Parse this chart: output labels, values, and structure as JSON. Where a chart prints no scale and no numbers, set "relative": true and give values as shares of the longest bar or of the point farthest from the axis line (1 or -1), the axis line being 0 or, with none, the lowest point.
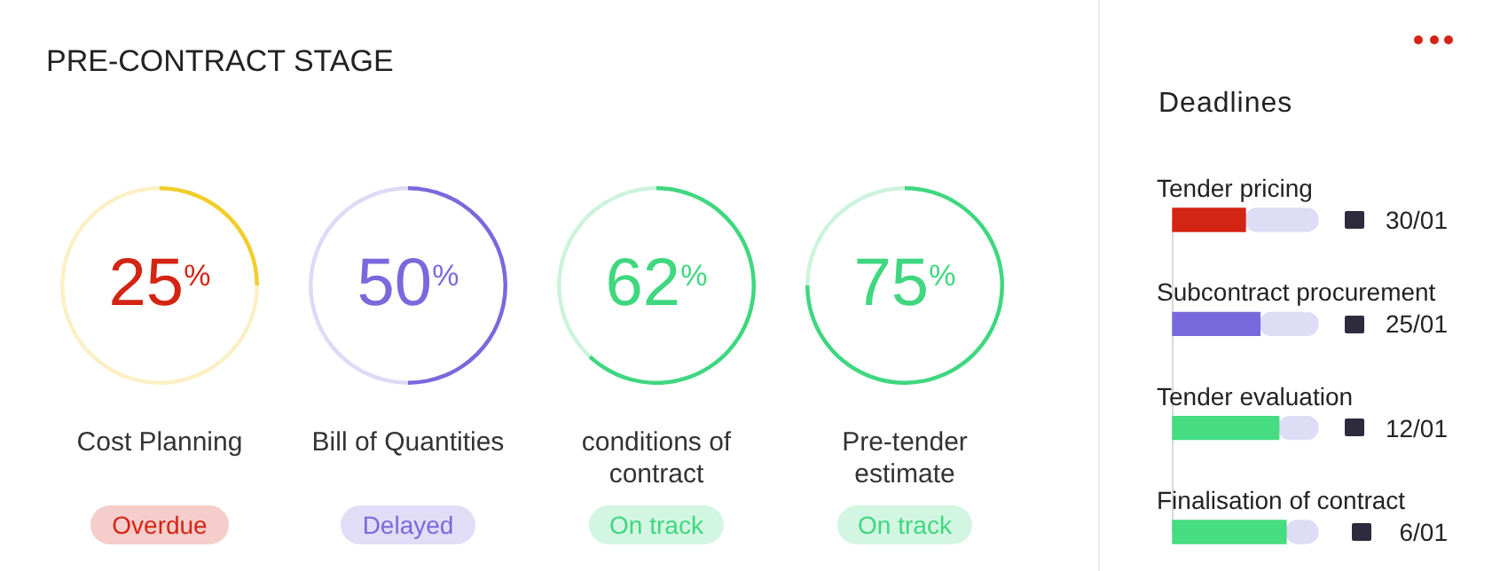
{
  "chart_data": [
    {
      "type": "other",
      "title": "PRE-CONTRACT STAGE"
    },
    {
      "type": "donut",
      "title": "Cost Planning",
      "categories": [
        null,
        null
      ],
      "values": [
        25,
        75
      ],
      "colors": [
        "#f2cd2c",
        "#fbf0c6"
      ],
      "value_labels": [
        "25$^{%}$",
        null
      ],
      "annotations": [
        "Overdue"
      ],
      "legend": false
    },
    {
      "type": "donut",
      "title": "Bill of Quantities",
      "categories": [
        null,
        null
      ],
      "values": [
        50,
        50
      ],
      "colors": [
        "#7a69dc",
        "#dedaf6"
      ],
      "value_labels": [
        "50$^{%}$",
        null
      ],
      "annotations": [
        "Delayed"
      ],
      "legend": false
    },
    {
      "type": "donut",
      "title": "conditions of contract",
      "categories": [
        null,
        null
      ],
      "values": [
        62,
        38
      ],
      "colors": [
        "#3fd77f",
        "#cdf3dc"
      ],
      "value_labels": [
        "62$^{%}$",
        null
      ],
      "annotations": [
        "On track"
      ],
      "legend": false
    },
    {
      "type": "donut",
      "title": "Pre-tender estimate",
      "categories": [
        null,
        null
      ],
      "values": [
        75,
        25
      ],
      "colors": [
        "#3fd77f",
        "#cdf3dc"
      ],
      "value_labels": [
        "75$^{%}$",
        null
      ],
      "annotations": [
        "On track"
      ],
      "legend": false
    },
    {
      "type": "bar",
      "title": "Deadlines",
      "orientation": "horizontal",
      "stacked": true,
      "relative": true,
      "legend": false,
      "categories": [
        "Tender pricing",
        "Subcontract procurement",
        "Tender evaluation",
        "Finalisation of contract"
      ],
      "series": [
        {
          "colors": [
            "#d42414",
            "#7a69dc",
            "#45dc82",
            "#45dc82"
          ],
          "values": [
            0.5,
            0.6,
            0.73,
            0.78
          ]
        },
        {
          "color": "#dfdcf6",
          "values": [
            0.5,
            0.4,
            0.27,
            0.22
          ]
        }
      ],
      "annotations": [
        "30/01",
        "25/01",
        "12/01",
        "6/01"
      ]
    }
  ]
}
